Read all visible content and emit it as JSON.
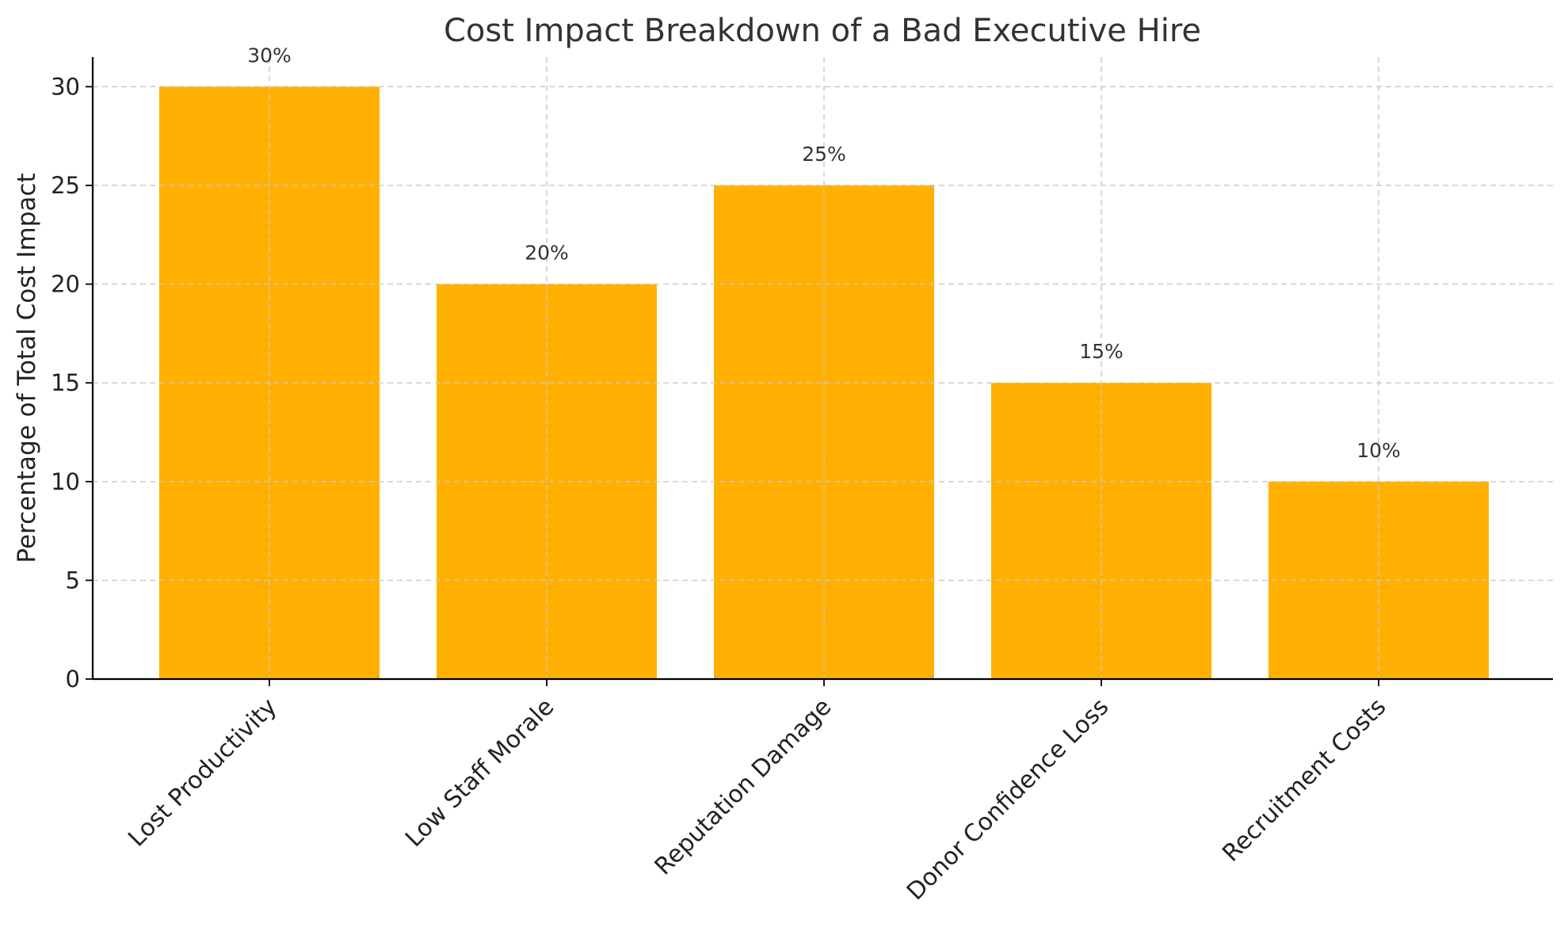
{
  "chart_data": {
    "type": "bar",
    "title": "Cost Impact Breakdown of a Bad Executive Hire",
    "xlabel": "",
    "ylabel": "Percentage of Total Cost Impact",
    "categories": [
      "Lost Productivity",
      "Low Staff Morale",
      "Reputation Damage",
      "Donor Confidence Loss",
      "Recruitment Costs"
    ],
    "values": [
      30,
      20,
      25,
      15,
      10
    ],
    "data_labels": [
      "30%",
      "20%",
      "25%",
      "15%",
      "10%"
    ],
    "ylim": [
      0,
      31.5
    ],
    "yticks": [
      0,
      5,
      10,
      15,
      20,
      25,
      30
    ],
    "grid": true,
    "bar_color": "#FFB000"
  }
}
